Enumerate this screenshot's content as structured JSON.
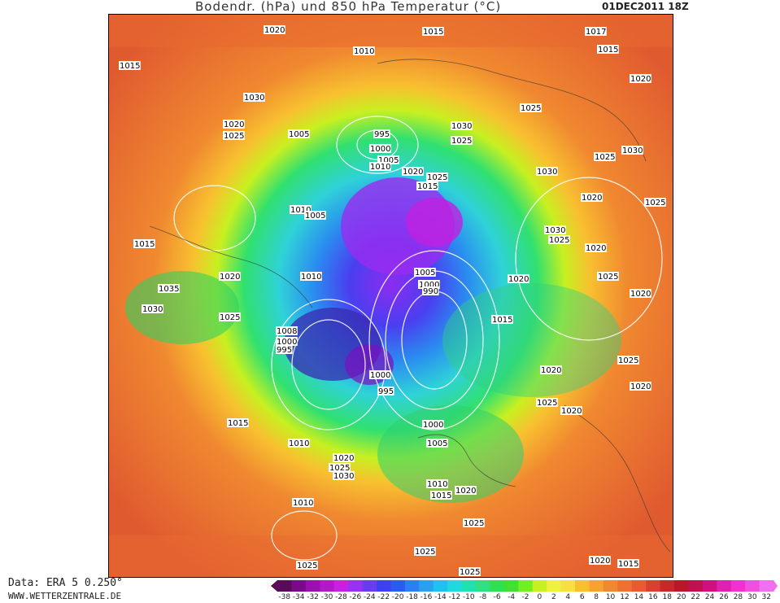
{
  "header": {
    "title": "Bodendr. (hPa) und 850 hPa Temperatur (°C)",
    "date": "01DEC2011 18Z"
  },
  "footer": {
    "data_source": "Data: ERA 5 0.250°",
    "website": "WWW.WETTERZENTRALE.DE"
  },
  "legend": {
    "ticks": [
      "-38",
      "-34",
      "-32",
      "-30",
      "-28",
      "-26",
      "-24",
      "-22",
      "-20",
      "-18",
      "-16",
      "-14",
      "-12",
      "-10",
      "-8",
      "-6",
      "-4",
      "-2",
      "0",
      "2",
      "4",
      "6",
      "8",
      "10",
      "12",
      "14",
      "16",
      "18",
      "20",
      "22",
      "24",
      "26",
      "28",
      "30",
      "32"
    ],
    "colors": [
      "#5a0a5a",
      "#7a0a8a",
      "#9b10b0",
      "#b418c8",
      "#cc20e0",
      "#9a30f0",
      "#6a3cf0",
      "#3c40f0",
      "#2b5cf0",
      "#2a80f0",
      "#2aa0f0",
      "#20c0f0",
      "#20d8e0",
      "#20e0b0",
      "#30e080",
      "#30e050",
      "#40e030",
      "#70f020",
      "#c8f020",
      "#f0f040",
      "#f8e040",
      "#f8c030",
      "#f8a030",
      "#f08830",
      "#f07030",
      "#e85a30",
      "#d84030",
      "#c82828",
      "#b81828",
      "#c01050",
      "#d01080",
      "#e020b0",
      "#f030d0",
      "#f050e0",
      "#f070f0"
    ]
  },
  "pressure_labels": [
    {
      "text": "1020"
    },
    {
      "text": "1015"
    },
    {
      "text": "1017"
    },
    {
      "text": "1015"
    },
    {
      "text": "1015"
    },
    {
      "text": "1010"
    },
    {
      "text": "1020"
    },
    {
      "text": "1030"
    },
    {
      "text": "1025"
    },
    {
      "text": "1020"
    },
    {
      "text": "1025"
    },
    {
      "text": "1005"
    },
    {
      "text": "995"
    },
    {
      "text": "1000"
    },
    {
      "text": "1030"
    },
    {
      "text": "1025"
    },
    {
      "text": "1005"
    },
    {
      "text": "1010"
    },
    {
      "text": "1020"
    },
    {
      "text": "1025"
    },
    {
      "text": "1015"
    },
    {
      "text": "1030"
    },
    {
      "text": "1025"
    },
    {
      "text": "1030"
    },
    {
      "text": "1020"
    },
    {
      "text": "1010"
    },
    {
      "text": "1005"
    },
    {
      "text": "1015"
    },
    {
      "text": "1030"
    },
    {
      "text": "1025"
    },
    {
      "text": "1020"
    },
    {
      "text": "1035"
    },
    {
      "text": "1030"
    },
    {
      "text": "1020"
    },
    {
      "text": "1005"
    },
    {
      "text": "1000"
    },
    {
      "text": "990"
    },
    {
      "text": "1010"
    },
    {
      "text": "1025"
    },
    {
      "text": "1020"
    },
    {
      "text": "1025"
    },
    {
      "text": "1008"
    },
    {
      "text": "1000"
    },
    {
      "text": "995"
    },
    {
      "text": "1000"
    },
    {
      "text": "995"
    },
    {
      "text": "1015"
    },
    {
      "text": "1020"
    },
    {
      "text": "1020"
    },
    {
      "text": "1025"
    },
    {
      "text": "1020"
    },
    {
      "text": "1015"
    },
    {
      "text": "1010"
    },
    {
      "text": "1000"
    },
    {
      "text": "1005"
    },
    {
      "text": "1020"
    },
    {
      "text": "1025"
    },
    {
      "text": "1030"
    },
    {
      "text": "1010"
    },
    {
      "text": "1010"
    },
    {
      "text": "1015"
    },
    {
      "text": "1020"
    },
    {
      "text": "1025"
    },
    {
      "text": "1025"
    },
    {
      "text": "1025"
    },
    {
      "text": "1025"
    },
    {
      "text": "1020"
    },
    {
      "text": "1015"
    },
    {
      "text": "1020"
    },
    {
      "text": "1025"
    },
    {
      "text": "1020"
    },
    {
      "text": "1025"
    }
  ]
}
